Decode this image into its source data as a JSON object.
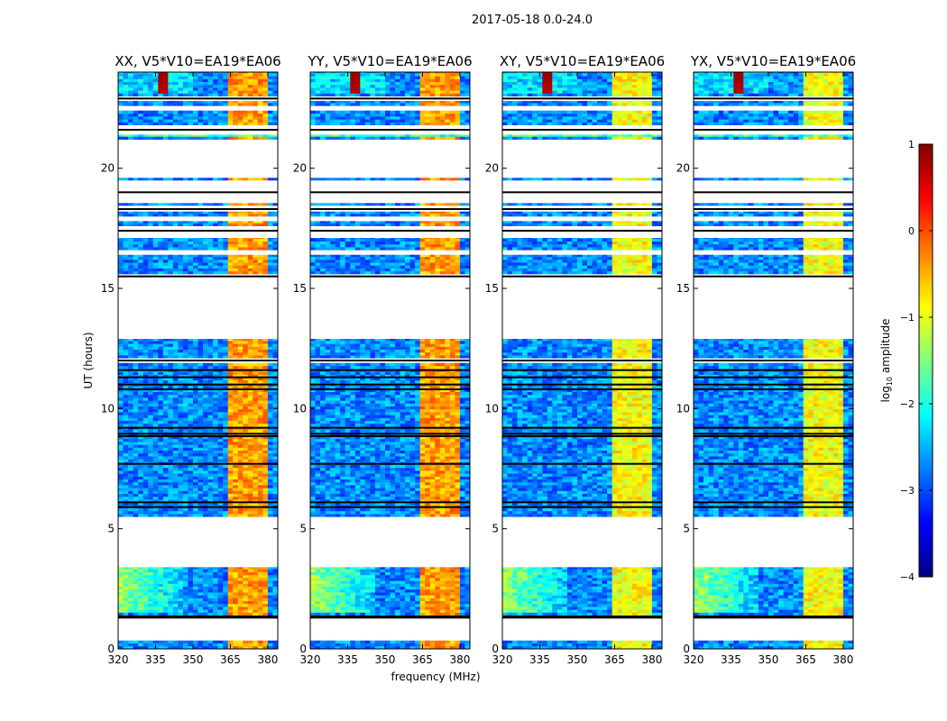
{
  "chart_data": {
    "type": "heatmap",
    "title": "2017-05-18 0.0-24.0",
    "xlabel": "frequency (MHz)",
    "ylabel": "UT (hours)",
    "xlim": [
      320,
      384
    ],
    "ylim": [
      0,
      24
    ],
    "xticks": [
      320,
      335,
      350,
      365,
      380
    ],
    "yticks": [
      0,
      5,
      10,
      15,
      20
    ],
    "panels": [
      {
        "title": "XX, V5*V10=EA19*EA06",
        "hot_level": -0.4
      },
      {
        "title": "YY, V5*V10=EA19*EA06",
        "hot_level": -0.4
      },
      {
        "title": "XY, V5*V10=EA19*EA06",
        "hot_level": -0.9
      },
      {
        "title": "YX, V5*V10=EA19*EA06",
        "hot_level": -0.9
      }
    ],
    "hot_band_mhz": [
      363,
      380
    ],
    "data_bands_ut": [
      [
        0.0,
        0.35
      ],
      [
        1.4,
        3.4
      ],
      [
        5.5,
        8.9
      ],
      [
        8.9,
        11.9
      ],
      [
        12.1,
        12.9
      ],
      [
        15.6,
        16.4
      ],
      [
        16.6,
        17.1
      ],
      [
        17.6,
        17.8
      ],
      [
        18.0,
        18.2
      ],
      [
        18.45,
        18.55
      ],
      [
        19.5,
        19.6
      ],
      [
        21.2,
        21.4
      ],
      [
        21.8,
        22.4
      ],
      [
        22.6,
        22.8
      ],
      [
        23.0,
        24.0
      ]
    ],
    "flagged_lines_ut": [
      1.3,
      1.35,
      5.9,
      6.1,
      7.7,
      8.85,
      8.95,
      9.2,
      10.8,
      11.0,
      11.3,
      11.6,
      12.0,
      15.5,
      17.4,
      18.3,
      19.0,
      21.6,
      22.9
    ],
    "colorbar": {
      "label": "log10 amplitude",
      "label_base": "log",
      "label_sub": "10",
      "label_rest": " amplitude",
      "range": [
        -4,
        1
      ],
      "ticks": [
        -4,
        -3,
        -2,
        -1,
        0,
        1
      ],
      "tick_labels": [
        "−4",
        "−3",
        "−2",
        "−1",
        "0",
        "1"
      ],
      "colormap": "jet"
    }
  }
}
